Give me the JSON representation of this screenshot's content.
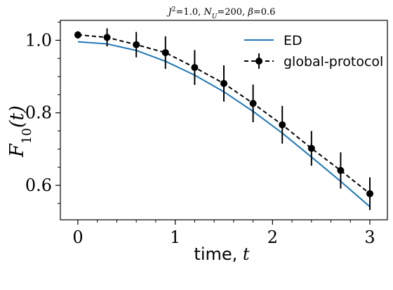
{
  "chart_data": {
    "type": "line",
    "title": "J²=1.0, N_U=200, β=0.6",
    "title_parts": {
      "j": "J",
      "j_sup": "2",
      "j_val": "=1.0, ",
      "n": "N",
      "n_sub": "U",
      "n_val": "=200, ",
      "beta": "β",
      "beta_val": "=0.6"
    },
    "xlabel": "time, t",
    "xlabel_parts": {
      "text": "time, ",
      "var": "t"
    },
    "ylabel": "F10(t)",
    "ylabel_parts": {
      "f": "F",
      "sub": "10",
      "arg": "(t)"
    },
    "xlim": [
      -0.18,
      3.18
    ],
    "ylim": [
      0.505,
      1.055
    ],
    "x_ticks": [
      0,
      1,
      2,
      3
    ],
    "x_ticklabels": [
      "0",
      "1",
      "2",
      "3"
    ],
    "x_minor_ticks": [
      0.2,
      0.4,
      0.6,
      0.8,
      1.2,
      1.4,
      1.6,
      1.8,
      2.2,
      2.4,
      2.6,
      2.8
    ],
    "y_ticks": [
      0.6,
      0.8,
      1.0
    ],
    "y_ticklabels": [
      "0.6",
      "0.8",
      "1.0"
    ],
    "y_minor_ticks": [
      0.55,
      0.65,
      0.7,
      0.75,
      0.85,
      0.9,
      0.95,
      1.05
    ],
    "grid": false,
    "legend_position": "top-right",
    "series": [
      {
        "name": "ED",
        "style": "solid",
        "color": "#1f77b4",
        "x": [
          0,
          0.3,
          0.6,
          0.9,
          1.2,
          1.5,
          1.8,
          2.1,
          2.4,
          2.7,
          3.0
        ],
        "y": [
          0.996,
          0.99,
          0.972,
          0.942,
          0.904,
          0.858,
          0.804,
          0.744,
          0.678,
          0.611,
          0.541
        ]
      },
      {
        "name": "global-protocol",
        "style": "dashed",
        "marker": "circle",
        "color": "#000000",
        "x": [
          0,
          0.3,
          0.6,
          0.9,
          1.2,
          1.5,
          1.8,
          2.1,
          2.4,
          2.7,
          3.0
        ],
        "y": [
          1.015,
          1.008,
          0.988,
          0.966,
          0.925,
          0.881,
          0.826,
          0.767,
          0.702,
          0.641,
          0.577
        ],
        "yerr": [
          0.01,
          0.025,
          0.035,
          0.045,
          0.048,
          0.05,
          0.052,
          0.052,
          0.048,
          0.05,
          0.045
        ]
      }
    ]
  }
}
